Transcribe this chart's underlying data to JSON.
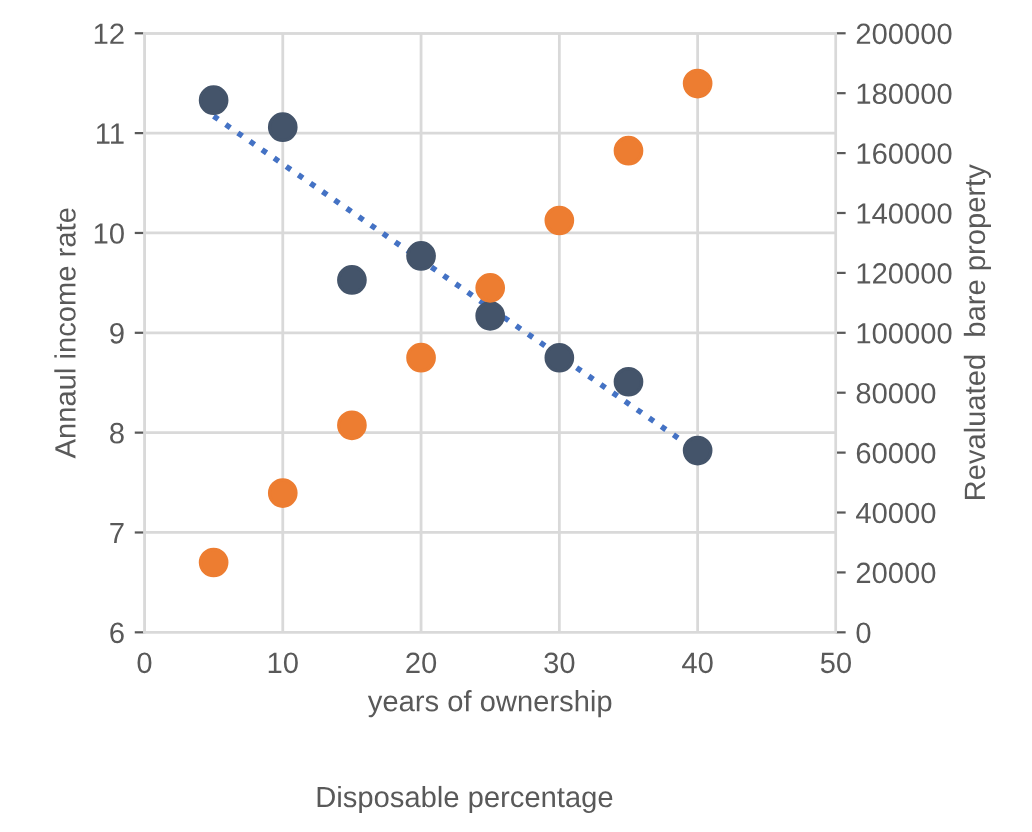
{
  "chart_data": {
    "type": "scatter",
    "xlabel": "years of ownership",
    "ylabel": "Annaul income rate",
    "y2label": "Revaluated  bare property",
    "annotations": [
      "Disposable percentage"
    ],
    "series": [
      {
        "color": "#44546a",
        "marker": "circle",
        "x": [
          5,
          10,
          15,
          20,
          25,
          30,
          35,
          40
        ],
        "values": [
          11.33,
          11.06,
          9.53,
          9.77,
          9.17,
          8.75,
          8.51,
          7.82
        ]
      },
      {
        "color": "#ed7d31",
        "marker": "circle",
        "axis": "y2",
        "x": [
          5,
          10,
          15,
          20,
          25,
          30,
          35,
          40
        ],
        "values": [
          23300,
          46500,
          69100,
          91700,
          115000,
          137500,
          160800,
          183200
        ]
      },
      {
        "type": "line",
        "color": "#4472c4",
        "line_style": "dotted",
        "x": [
          5,
          40
        ],
        "values": [
          11.17,
          7.81
        ]
      }
    ],
    "xlim": [
      0,
      50
    ],
    "xticks": [
      0,
      10,
      20,
      30,
      40,
      50
    ],
    "ylim": [
      6,
      12
    ],
    "yticks": [
      6,
      7,
      8,
      9,
      10,
      11,
      12
    ],
    "y2lim": [
      0,
      200000
    ],
    "y2ticks": [
      0,
      20000,
      40000,
      60000,
      80000,
      100000,
      120000,
      140000,
      160000,
      180000,
      200000
    ],
    "grid": true
  }
}
